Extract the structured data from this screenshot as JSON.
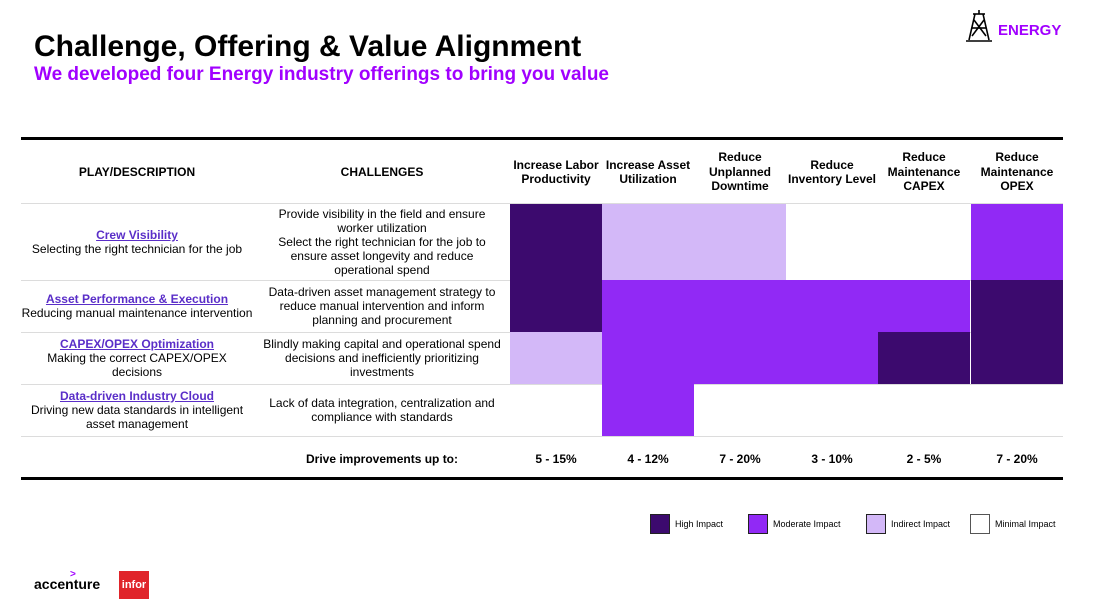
{
  "header": {
    "title": "Challenge, Offering & Value Alignment",
    "subtitle": "We developed four Energy industry offerings to bring you value",
    "brand": "ENERGY"
  },
  "table": {
    "col_play": "PLAY/DESCRIPTION",
    "col_challenges": "CHALLENGES",
    "metrics": [
      "Increase Labor Productivity",
      "Increase Asset Utilization",
      "Reduce Unplanned Downtime",
      "Reduce Inventory Level",
      "Reduce Maintenance CAPEX",
      "Reduce Maintenance OPEX"
    ],
    "rows": [
      {
        "name": "Crew Visibility",
        "desc": "Selecting the right technician for the job",
        "challenge": "Provide visibility in the field and ensure worker utilization\nSelect the right technician for the job to ensure asset longevity and reduce operational spend",
        "impact": [
          "high",
          "indirect",
          "indirect",
          "minimal",
          "minimal",
          "moderate"
        ]
      },
      {
        "name": "Asset Performance & Execution",
        "desc": "Reducing manual maintenance intervention",
        "challenge": "Data-driven asset management strategy to reduce manual intervention and inform planning and procurement",
        "impact": [
          "high",
          "moderate",
          "moderate",
          "moderate",
          "moderate",
          "high"
        ]
      },
      {
        "name": "CAPEX/OPEX Optimization",
        "desc": "Making the correct CAPEX/OPEX decisions",
        "challenge": "Blindly making capital and operational spend decisions and inefficiently prioritizing investments",
        "impact": [
          "indirect",
          "moderate",
          "moderate",
          "moderate",
          "high",
          "high"
        ]
      },
      {
        "name": "Data-driven Industry Cloud",
        "desc": "Driving new data standards in intelligent asset management",
        "challenge": "Lack of data integration, centralization and compliance with standards",
        "impact": [
          "minimal",
          "moderate",
          "minimal",
          "minimal",
          "minimal",
          "minimal"
        ]
      }
    ],
    "drive_label": "Drive improvements up to:",
    "drive_values": [
      "5 - 15%",
      "4 - 12%",
      "7 - 20%",
      "3 - 10%",
      "2 - 5%",
      "7 - 20%"
    ]
  },
  "legend": [
    {
      "key": "high",
      "label": "High Impact"
    },
    {
      "key": "moderate",
      "label": "Moderate Impact"
    },
    {
      "key": "indirect",
      "label": "Indirect Impact"
    },
    {
      "key": "minimal",
      "label": "Minimal Impact"
    }
  ],
  "colors": {
    "high": "#3c0a6e",
    "moderate": "#9129f5",
    "indirect": "#d3b8f8",
    "minimal": "#ffffff",
    "accent": "#a100ff"
  },
  "icons": [
    "oil-rig-icon"
  ],
  "footer": {
    "accenture": "accenture",
    "infor": "infor"
  }
}
